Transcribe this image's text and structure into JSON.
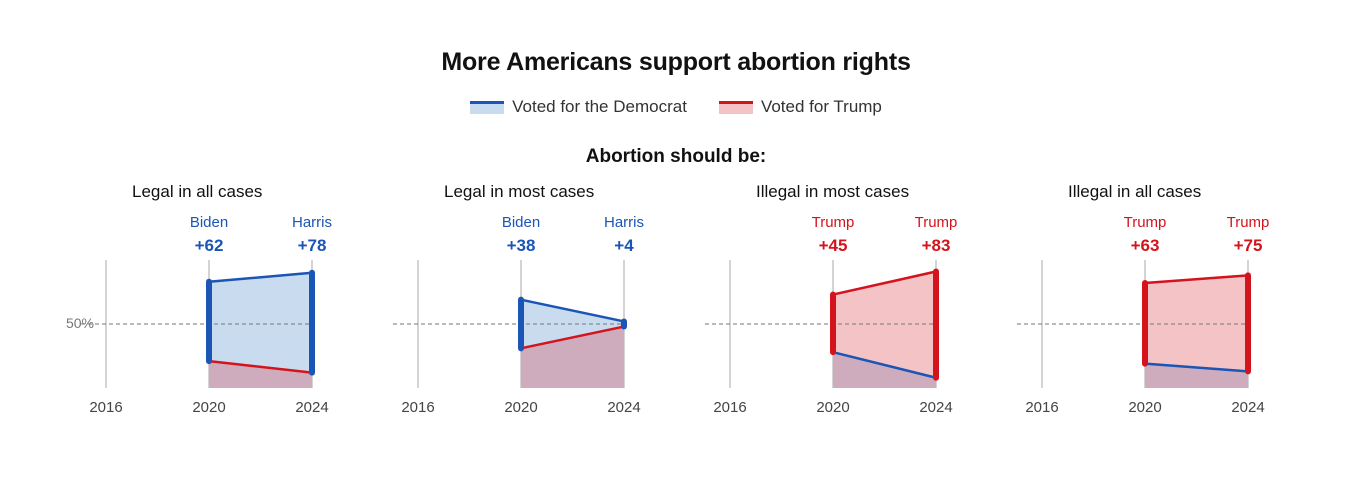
{
  "title": "More Americans support abortion rights",
  "subtitle": "Abortion should be:",
  "legend": [
    {
      "label": "Voted for the Democrat",
      "color": "#1b55b5",
      "fill": "#c9dbef"
    },
    {
      "label": "Voted for Trump",
      "color": "#d3141d",
      "fill": "#f4c3c6"
    }
  ],
  "colors": {
    "dem": "#1b55b5",
    "dem_fill": "#c9dbef",
    "rep": "#d3141d",
    "rep_fill": "#f4c3c6",
    "overlap": "#cfacbd"
  },
  "chart_data": {
    "type": "area",
    "x": [
      "2016",
      "2020",
      "2024"
    ],
    "reference_label": "50%",
    "panels": [
      {
        "category": "Legal in all cases",
        "dem": {
          "2020": 0.83,
          "2024": 0.9
        },
        "trump": {
          "2020": 0.21,
          "2024": 0.12
        },
        "annotations": [
          {
            "year": "2020",
            "name": "Biden",
            "margin": "+62",
            "party": "dem"
          },
          {
            "year": "2024",
            "name": "Harris",
            "margin": "+78",
            "party": "dem"
          }
        ]
      },
      {
        "category": "Legal in most cases",
        "dem": {
          "2020": 0.69,
          "2024": 0.52
        },
        "trump": {
          "2020": 0.31,
          "2024": 0.48
        },
        "annotations": [
          {
            "year": "2020",
            "name": "Biden",
            "margin": "+38",
            "party": "dem"
          },
          {
            "year": "2024",
            "name": "Harris",
            "margin": "+4",
            "party": "dem"
          }
        ]
      },
      {
        "category": "Illegal in most cases",
        "dem": {
          "2020": 0.28,
          "2024": 0.08
        },
        "trump": {
          "2020": 0.73,
          "2024": 0.91
        },
        "annotations": [
          {
            "year": "2020",
            "name": "Trump",
            "margin": "+45",
            "party": "rep"
          },
          {
            "year": "2024",
            "name": "Trump",
            "margin": "+83",
            "party": "rep"
          }
        ]
      },
      {
        "category": "Illegal in all cases",
        "dem": {
          "2020": 0.19,
          "2024": 0.13
        },
        "trump": {
          "2020": 0.82,
          "2024": 0.88
        },
        "annotations": [
          {
            "year": "2020",
            "name": "Trump",
            "margin": "+63",
            "party": "rep"
          },
          {
            "year": "2024",
            "name": "Trump",
            "margin": "+75",
            "party": "rep"
          }
        ]
      }
    ]
  }
}
